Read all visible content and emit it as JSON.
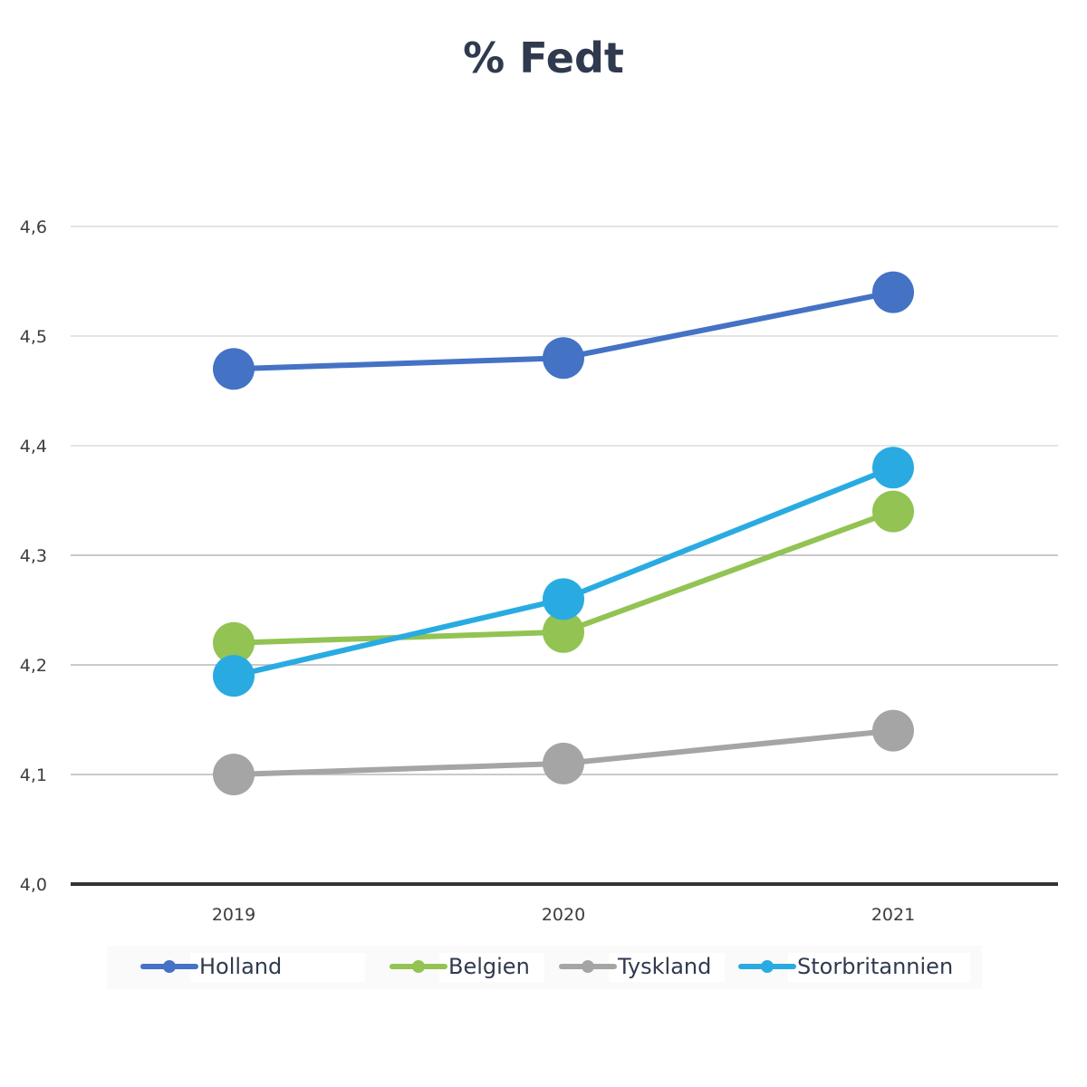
{
  "chart_data": {
    "type": "line",
    "title": "% Fedt",
    "xlabel": "",
    "ylabel": "",
    "categories": [
      "2019",
      "2020",
      "2021"
    ],
    "ylim": [
      4.0,
      4.6
    ],
    "yticks": [
      "4,0",
      "4,1",
      "4,2",
      "4,3",
      "4,4",
      "4,5",
      "4,6"
    ],
    "grid": true,
    "legend_position": "bottom",
    "series": [
      {
        "name": "Holland",
        "color": "#4472c4",
        "values": [
          4.47,
          4.48,
          4.54
        ]
      },
      {
        "name": "Belgien",
        "color": "#92c353",
        "values": [
          4.22,
          4.23,
          4.34
        ]
      },
      {
        "name": "Tyskland",
        "color": "#a5a5a5",
        "values": [
          4.1,
          4.11,
          4.14
        ]
      },
      {
        "name": "Storbritannien",
        "color": "#29abe2",
        "values": [
          4.19,
          4.26,
          4.38
        ]
      }
    ]
  }
}
